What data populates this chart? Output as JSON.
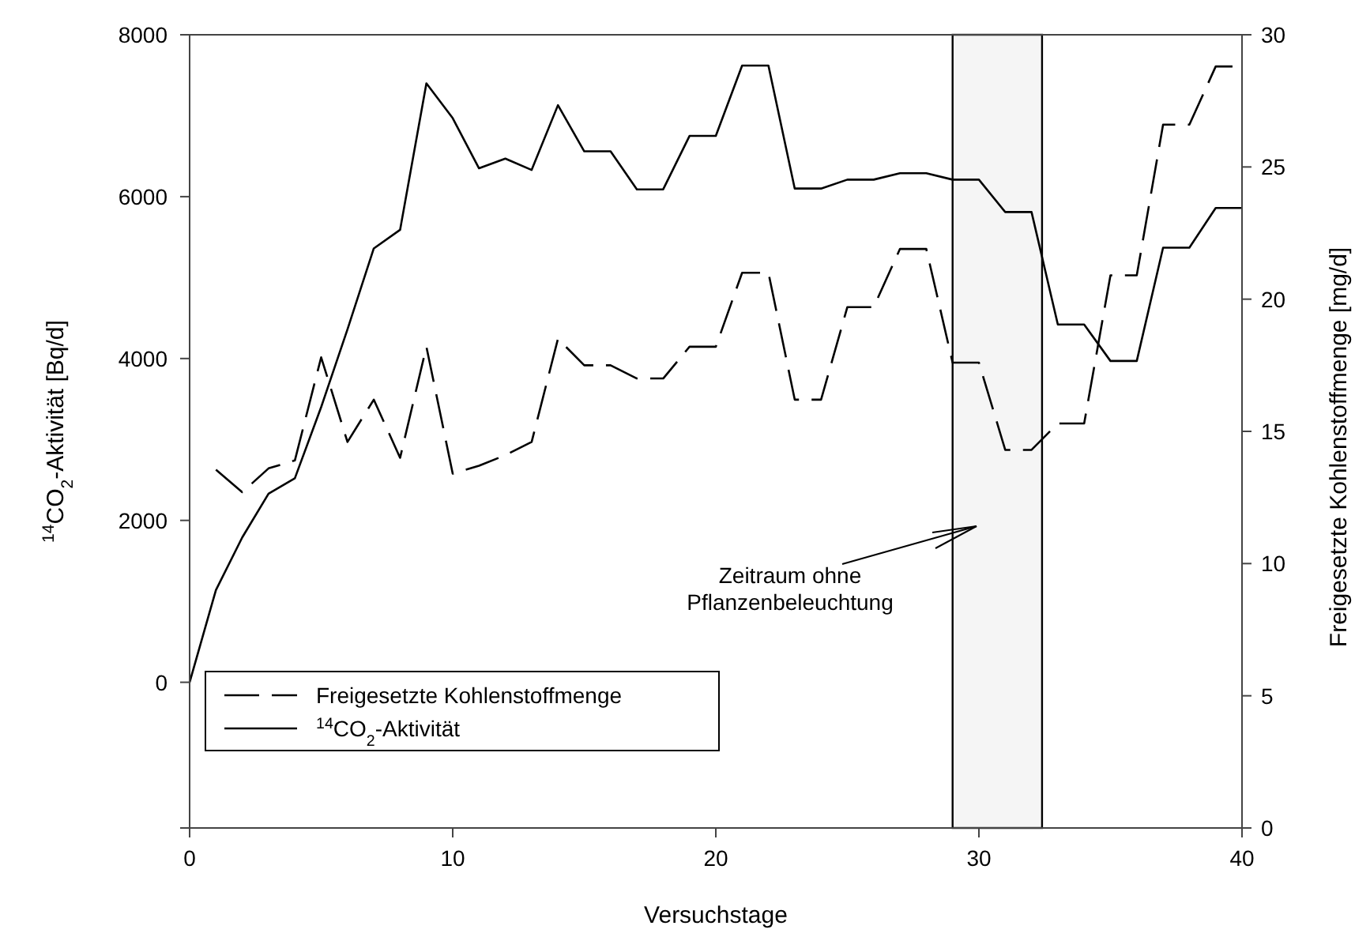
{
  "chart_data": {
    "type": "line",
    "xlabel": "Versuchstage",
    "ylabel": "$^{14}$CO$_{2}$-Aktivität [Bq/d]",
    "y2label": "Freigesetzte Kohlenstoffmenge [mg/d]",
    "xlim": [
      0,
      40
    ],
    "xticks": [
      0,
      10,
      20,
      30,
      40
    ],
    "ylim": [
      -1800,
      8000
    ],
    "yticks": [
      {
        "value": -1800,
        "label": null
      },
      0,
      2000,
      4000,
      6000,
      8000
    ],
    "y2lim": [
      0,
      30
    ],
    "y2ticks": [
      0,
      5,
      10,
      15,
      20,
      25,
      30
    ],
    "grid": false,
    "legend": "bottom left",
    "marker": "none",
    "bands": [
      {
        "axis": "x",
        "from": 29,
        "to": 32.4,
        "color": "#000000"
      }
    ],
    "annotations": [
      "Zeitraum ohne\nPflanzenbeleuchtung"
    ],
    "series": [
      {
        "name": "Freigesetzte Kohlenstoffmenge",
        "color": "#000000",
        "axis": "y2",
        "line_style": "dashed",
        "x": [
          1,
          2,
          3,
          4,
          5,
          6,
          7,
          8,
          9,
          10,
          11,
          12,
          13,
          14,
          15,
          16,
          17,
          18,
          19,
          20,
          21,
          22,
          23,
          24,
          25,
          26,
          27,
          28,
          29,
          30,
          31,
          32,
          33,
          34,
          35,
          36,
          37,
          38,
          39,
          40
        ],
        "values": [
          13.55,
          12.7,
          13.6,
          13.9,
          17.8,
          14.6,
          16.2,
          14.0,
          18.2,
          13.4,
          13.7,
          14.1,
          14.6,
          18.5,
          17.5,
          17.5,
          17.0,
          17.0,
          18.2,
          18.2,
          21.0,
          21.0,
          16.2,
          16.2,
          19.7,
          19.7,
          21.9,
          21.9,
          17.6,
          17.6,
          14.3,
          14.3,
          15.3,
          15.3,
          20.9,
          20.9,
          26.6,
          26.6,
          28.8,
          28.8
        ]
      },
      {
        "name": "$^{14}$CO$_{2}$-Aktivität",
        "color": "#000000",
        "line_style": "solid",
        "x": [
          0,
          1,
          2,
          3,
          4,
          5,
          6,
          7,
          8,
          9,
          10,
          11,
          12,
          13,
          14,
          15,
          16,
          17,
          18,
          19,
          20,
          21,
          22,
          23,
          24,
          25,
          26,
          27,
          28,
          29,
          30,
          31,
          32,
          33,
          34,
          35,
          36,
          37,
          38,
          39,
          40
        ],
        "values": [
          0,
          1140,
          1790,
          2330,
          2520,
          3400,
          4360,
          5360,
          5590,
          7400,
          6970,
          6350,
          6470,
          6330,
          7130,
          6560,
          6560,
          6090,
          6090,
          6750,
          6750,
          7620,
          7620,
          6100,
          6100,
          6210,
          6210,
          6290,
          6290,
          6210,
          6210,
          5810,
          5810,
          4420,
          4420,
          3970,
          3970,
          5370,
          5370,
          5860,
          5860
        ]
      }
    ]
  }
}
